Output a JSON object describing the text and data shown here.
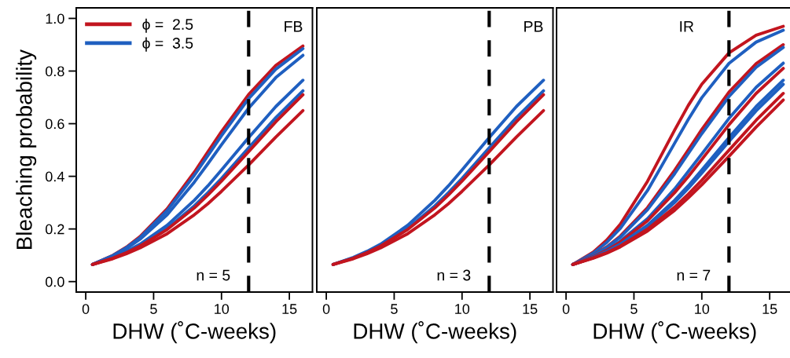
{
  "chart_data": [
    {
      "type": "line",
      "ylabel": "Bleaching probability",
      "xlabel": "DHW (˚C-weeks)",
      "annotations": [
        "FB",
        "n = 5"
      ],
      "x": [
        0.5,
        2,
        3,
        4,
        6,
        8,
        9,
        10,
        12,
        14,
        16
      ],
      "xlim": [
        -0.7,
        16.7
      ],
      "xticks": [
        0,
        5,
        10,
        15
      ],
      "ylim": [
        -0.04,
        1.04
      ],
      "yticks": [
        {
          "value": 0,
          "label": "0.0"
        },
        {
          "value": 0.2,
          "label": "0.2"
        },
        {
          "value": 0.4,
          "label": "0.4"
        },
        {
          "value": 0.6,
          "label": "0.6"
        },
        {
          "value": 0.8,
          "label": "0.8"
        },
        {
          "value": 1,
          "label": "1.0"
        }
      ],
      "legend": "top left",
      "line_style": "solid",
      "marker": "none",
      "ref_lines": [
        {
          "axis": "x",
          "value": 12,
          "color": "#000000",
          "line_style": "dashed"
        }
      ],
      "series": [
        {
          "name": "ϕ =  2.5",
          "color": "#c2151f",
          "values": [
            0.065,
            0.1,
            0.131,
            0.171,
            0.277,
            0.416,
            0.493,
            0.57,
            0.711,
            0.821,
            0.895
          ]
        },
        {
          "name": "ϕ =  3.5",
          "color": "#1f5fc0",
          "values": [
            0.065,
            0.099,
            0.129,
            0.167,
            0.27,
            0.404,
            0.479,
            0.554,
            0.695,
            0.807,
            0.885
          ]
        },
        {
          "color": "#1f5fc0",
          "values": [
            0.065,
            0.097,
            0.125,
            0.161,
            0.254,
            0.378,
            0.448,
            0.52,
            0.659,
            0.775,
            0.86
          ]
        },
        {
          "color": "#1f5fc0",
          "values": [
            0.065,
            0.092,
            0.115,
            0.142,
            0.214,
            0.309,
            0.364,
            0.424,
            0.547,
            0.665,
            0.765
          ]
        },
        {
          "color": "#1f5fc0",
          "values": [
            0.065,
            0.09,
            0.111,
            0.137,
            0.202,
            0.288,
            0.338,
            0.392,
            0.508,
            0.623,
            0.725
          ]
        },
        {
          "color": "#c2151f",
          "values": [
            0.065,
            0.089,
            0.11,
            0.135,
            0.198,
            0.28,
            0.329,
            0.382,
            0.494,
            0.607,
            0.71
          ]
        },
        {
          "color": "#c2151f",
          "values": [
            0.065,
            0.087,
            0.106,
            0.128,
            0.182,
            0.254,
            0.296,
            0.343,
            0.443,
            0.549,
            0.65
          ]
        }
      ]
    },
    {
      "type": "line",
      "xlabel": "DHW (˚C-weeks)",
      "annotations": [
        "PB",
        "n = 3"
      ],
      "x": [
        0.5,
        2,
        3,
        4,
        6,
        8,
        9,
        10,
        12,
        14,
        16
      ],
      "xlim": [
        -0.7,
        16.7
      ],
      "xticks": [
        0,
        5,
        10,
        15
      ],
      "ylim": [
        -0.04,
        1.04
      ],
      "tick_labels": "x",
      "line_style": "solid",
      "marker": "none",
      "ref_lines": [
        {
          "axis": "x",
          "value": 12,
          "color": "#000000",
          "line_style": "dashed"
        }
      ],
      "series": [
        {
          "color": "#1f5fc0",
          "values": [
            0.065,
            0.092,
            0.115,
            0.142,
            0.214,
            0.309,
            0.364,
            0.424,
            0.547,
            0.665,
            0.765
          ]
        },
        {
          "color": "#1f5fc0",
          "values": [
            0.065,
            0.09,
            0.111,
            0.137,
            0.202,
            0.288,
            0.338,
            0.392,
            0.508,
            0.623,
            0.725
          ]
        },
        {
          "color": "#c2151f",
          "values": [
            0.065,
            0.089,
            0.11,
            0.135,
            0.198,
            0.28,
            0.329,
            0.382,
            0.494,
            0.607,
            0.71
          ]
        },
        {
          "color": "#c2151f",
          "values": [
            0.065,
            0.087,
            0.106,
            0.128,
            0.182,
            0.254,
            0.296,
            0.343,
            0.443,
            0.549,
            0.65
          ]
        }
      ]
    },
    {
      "type": "line",
      "xlabel": "DHW (˚C-weeks)",
      "annotations": [
        "IR",
        "n = 7"
      ],
      "x": [
        0.5,
        2,
        3,
        4,
        6,
        8,
        9,
        10,
        12,
        14,
        16
      ],
      "xlim": [
        -0.7,
        16.7
      ],
      "xticks": [
        0,
        5,
        10,
        15
      ],
      "ylim": [
        -0.04,
        1.04
      ],
      "tick_labels": "x",
      "line_style": "solid",
      "marker": "none",
      "ref_lines": [
        {
          "axis": "x",
          "value": 12,
          "color": "#000000",
          "line_style": "dashed"
        }
      ],
      "series": [
        {
          "color": "#c2151f",
          "values": [
            0.065,
            0.112,
            0.158,
            0.218,
            0.381,
            0.576,
            0.669,
            0.75,
            0.869,
            0.936,
            0.97
          ]
        },
        {
          "color": "#1f5fc0",
          "values": [
            0.065,
            0.108,
            0.149,
            0.202,
            0.346,
            0.526,
            0.616,
            0.699,
            0.829,
            0.91,
            0.955
          ]
        },
        {
          "color": "#c2151f",
          "values": [
            0.065,
            0.1,
            0.132,
            0.173,
            0.281,
            0.423,
            0.5,
            0.578,
            0.72,
            0.828,
            0.9
          ]
        },
        {
          "color": "#1f5fc0",
          "values": [
            0.065,
            0.099,
            0.13,
            0.169,
            0.273,
            0.41,
            0.486,
            0.562,
            0.703,
            0.814,
            0.89
          ]
        },
        {
          "color": "#1f5fc0",
          "values": [
            0.065,
            0.095,
            0.121,
            0.154,
            0.239,
            0.352,
            0.418,
            0.485,
            0.62,
            0.738,
            0.83
          ]
        },
        {
          "color": "#c2151f",
          "values": [
            0.065,
            0.094,
            0.119,
            0.15,
            0.231,
            0.338,
            0.399,
            0.464,
            0.596,
            0.715,
            0.81
          ]
        },
        {
          "color": "#1f5fc0",
          "values": [
            0.065,
            0.092,
            0.115,
            0.142,
            0.214,
            0.309,
            0.364,
            0.424,
            0.547,
            0.665,
            0.765
          ]
        },
        {
          "color": "#1f5fc0",
          "values": [
            0.065,
            0.091,
            0.113,
            0.14,
            0.209,
            0.301,
            0.354,
            0.412,
            0.532,
            0.649,
            0.75
          ]
        },
        {
          "color": "#c2151f",
          "values": [
            0.065,
            0.09,
            0.11,
            0.135,
            0.199,
            0.283,
            0.332,
            0.385,
            0.499,
            0.613,
            0.715
          ]
        },
        {
          "color": "#c2151f",
          "values": [
            0.065,
            0.089,
            0.108,
            0.132,
            0.192,
            0.271,
            0.318,
            0.368,
            0.476,
            0.587,
            0.69
          ]
        }
      ]
    }
  ]
}
